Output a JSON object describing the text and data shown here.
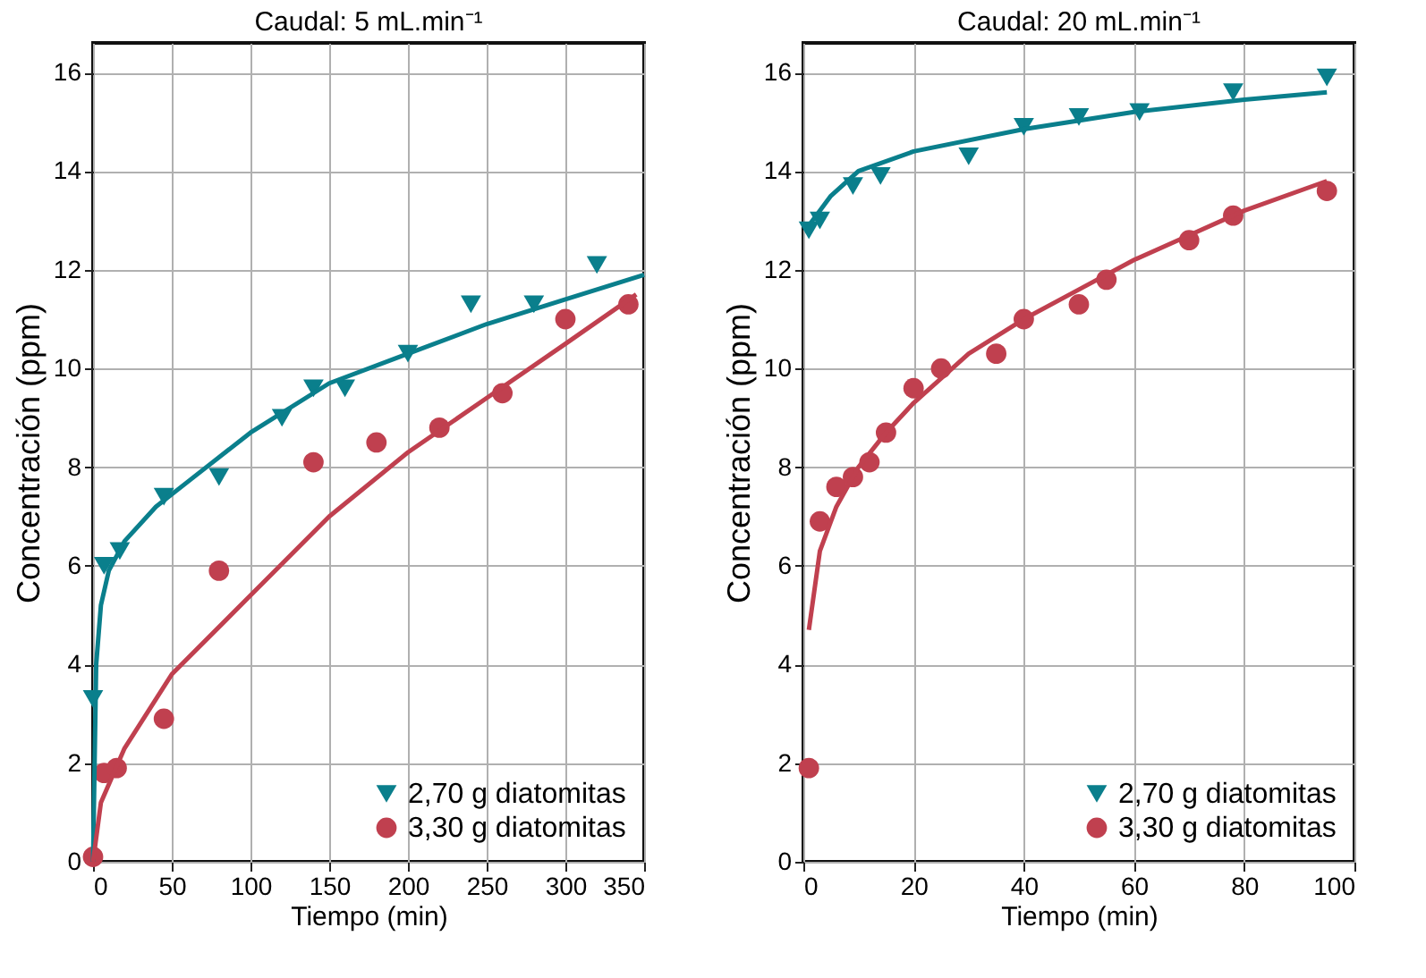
{
  "chart_data": [
    {
      "type": "scatter",
      "title": "Caudal: 5 mL.min⁻¹",
      "xlabel": "Tiempo (min)",
      "ylabel": "Concentración (ppm)",
      "xlim": [
        0,
        350
      ],
      "ylim": [
        0,
        16.6
      ],
      "xticks": [
        0,
        50,
        100,
        150,
        200,
        250,
        300,
        350
      ],
      "yticks": [
        0,
        2,
        4,
        6,
        8,
        10,
        12,
        14,
        16
      ],
      "grid": true,
      "legend": "bottom right",
      "series": [
        {
          "name": "2,70 g diatomitas",
          "marker": "triangle",
          "color": "#0a7f8c",
          "x": [
            0,
            7,
            17,
            45,
            80,
            120,
            140,
            160,
            200,
            240,
            280,
            320
          ],
          "values": [
            3.3,
            6.0,
            6.3,
            7.4,
            7.8,
            9.0,
            9.6,
            9.6,
            10.3,
            11.3,
            11.3,
            12.1
          ]
        },
        {
          "name": "3,30 g diatomitas",
          "marker": "circle",
          "color": "#c0404f",
          "x": [
            0,
            7,
            15,
            45,
            80,
            140,
            180,
            220,
            260,
            300,
            340
          ],
          "values": [
            0.1,
            1.8,
            1.9,
            2.9,
            5.9,
            8.1,
            8.5,
            8.8,
            9.5,
            11.0,
            11.3
          ]
        },
        {
          "type": "line",
          "color": "#0a7f8c",
          "x": [
            0,
            2,
            5,
            10,
            20,
            40,
            60,
            100,
            150,
            200,
            250,
            300,
            350
          ],
          "values": [
            0,
            4.0,
            5.2,
            5.9,
            6.5,
            7.2,
            7.7,
            8.7,
            9.7,
            10.3,
            10.9,
            11.4,
            11.9
          ]
        },
        {
          "type": "line",
          "color": "#c0404f",
          "x": [
            0,
            5,
            20,
            50,
            100,
            150,
            200,
            250,
            300,
            345
          ],
          "values": [
            0,
            1.2,
            2.3,
            3.8,
            5.4,
            7.0,
            8.3,
            9.4,
            10.5,
            11.5
          ]
        }
      ]
    },
    {
      "type": "scatter",
      "title": "Caudal: 20 mL.min⁻¹",
      "xlabel": "Tiempo (min)",
      "ylabel": "Concentración (ppm)",
      "xlim": [
        0,
        100
      ],
      "ylim": [
        0,
        16.6
      ],
      "xticks": [
        0,
        20,
        40,
        60,
        80,
        100
      ],
      "yticks": [
        0,
        2,
        4,
        6,
        8,
        10,
        12,
        14,
        16
      ],
      "grid": true,
      "legend": "bottom right",
      "series": [
        {
          "name": "2,70 g diatomitas",
          "marker": "triangle",
          "color": "#0a7f8c",
          "x": [
            1,
            3,
            9,
            14,
            30,
            40,
            50,
            61,
            78,
            95
          ],
          "values": [
            12.8,
            13.0,
            13.7,
            13.9,
            14.3,
            14.9,
            15.1,
            15.2,
            15.6,
            15.9
          ]
        },
        {
          "name": "3,30 g diatomitas",
          "marker": "circle",
          "color": "#c0404f",
          "x": [
            1,
            3,
            6,
            9,
            12,
            15,
            20,
            25,
            35,
            40,
            50,
            55,
            70,
            78,
            95
          ],
          "values": [
            1.9,
            6.9,
            7.6,
            7.8,
            8.1,
            8.7,
            9.6,
            10.0,
            10.3,
            11.0,
            11.3,
            11.8,
            12.6,
            13.1,
            13.6
          ]
        },
        {
          "type": "line",
          "color": "#0a7f8c",
          "x": [
            1,
            5,
            10,
            20,
            40,
            60,
            80,
            95
          ],
          "values": [
            12.9,
            13.5,
            14.0,
            14.4,
            14.85,
            15.2,
            15.45,
            15.6
          ]
        },
        {
          "type": "line",
          "color": "#c0404f",
          "x": [
            1,
            3,
            6,
            10,
            15,
            20,
            30,
            40,
            50,
            60,
            70,
            80,
            95
          ],
          "values": [
            4.7,
            6.3,
            7.2,
            8.0,
            8.7,
            9.3,
            10.3,
            11.0,
            11.6,
            12.2,
            12.7,
            13.2,
            13.8
          ]
        }
      ]
    }
  ]
}
